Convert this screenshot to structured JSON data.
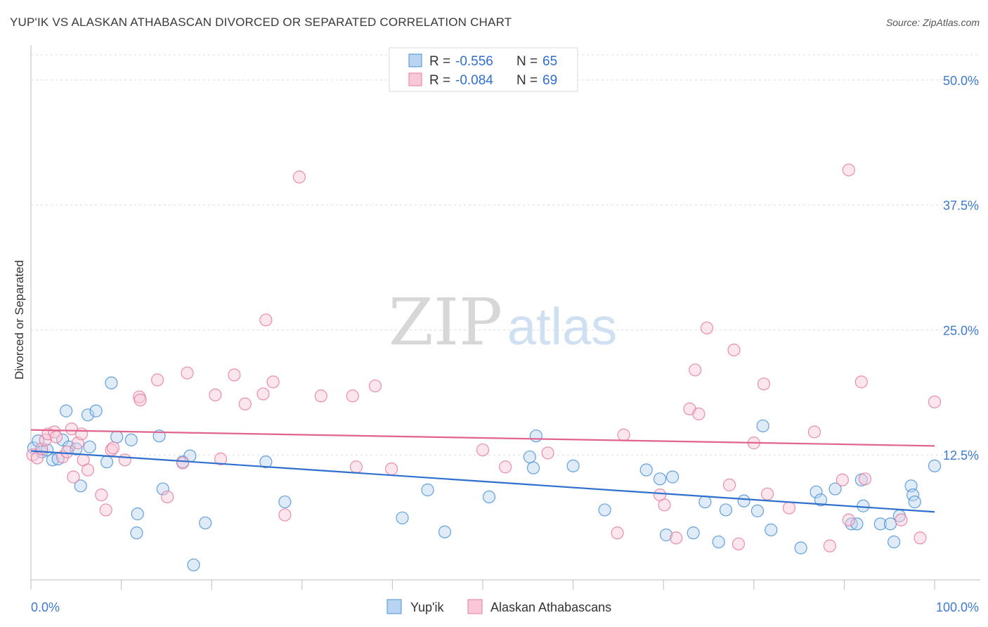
{
  "chart_data": {
    "type": "scatter",
    "title": "YUP'IK VS ALASKAN ATHABASCAN DIVORCED OR SEPARATED CORRELATION CHART",
    "source": "Source: ZipAtlas.com",
    "ylabel": "Divorced or Separated",
    "xlabel": "",
    "xlim": [
      0,
      100
    ],
    "ylim": [
      0,
      53.5
    ],
    "x_tick_labels": [
      "0.0%",
      "100.0%"
    ],
    "y_ticks": [
      12.5,
      25.0,
      37.5,
      50.0
    ],
    "y_tick_labels": [
      "12.5%",
      "25.0%",
      "37.5%",
      "50.0%"
    ],
    "grid": true,
    "watermark": {
      "zip": "ZIP",
      "atlas": "atlas"
    },
    "legend_stats": [
      {
        "r_label": "R =",
        "r_value": "-0.556",
        "n_label": "N =",
        "n_value": "65"
      },
      {
        "r_label": "R =",
        "r_value": "-0.084",
        "n_label": "N =",
        "n_value": "69"
      }
    ],
    "series": [
      {
        "name": "Yup'ik",
        "color": "#4a90d9",
        "fill": "#b8d4f0",
        "trend": {
          "x": [
            0,
            100
          ],
          "y": [
            12.9,
            6.8
          ]
        },
        "points": [
          [
            0.3,
            13.2
          ],
          [
            0.8,
            13.9
          ],
          [
            1.2,
            12.8
          ],
          [
            1.8,
            13.0
          ],
          [
            2.4,
            12.0
          ],
          [
            3.0,
            12.1
          ],
          [
            3.5,
            14.0
          ],
          [
            3.9,
            16.9
          ],
          [
            4.2,
            13.3
          ],
          [
            5.0,
            13.1
          ],
          [
            5.5,
            9.4
          ],
          [
            6.3,
            16.5
          ],
          [
            6.5,
            13.3
          ],
          [
            7.2,
            16.9
          ],
          [
            8.4,
            11.8
          ],
          [
            8.9,
            19.7
          ],
          [
            9.5,
            14.3
          ],
          [
            11.1,
            14.0
          ],
          [
            11.7,
            4.7
          ],
          [
            11.8,
            6.6
          ],
          [
            14.2,
            14.4
          ],
          [
            14.6,
            9.1
          ],
          [
            16.8,
            11.8
          ],
          [
            17.6,
            12.4
          ],
          [
            18.0,
            1.5
          ],
          [
            19.3,
            5.7
          ],
          [
            26.0,
            11.8
          ],
          [
            28.1,
            7.8
          ],
          [
            41.1,
            6.2
          ],
          [
            43.9,
            9.0
          ],
          [
            45.8,
            4.8
          ],
          [
            50.7,
            8.3
          ],
          [
            55.2,
            12.3
          ],
          [
            55.6,
            11.2
          ],
          [
            55.9,
            14.4
          ],
          [
            60.0,
            11.4
          ],
          [
            63.5,
            7.0
          ],
          [
            68.1,
            11.0
          ],
          [
            69.6,
            10.1
          ],
          [
            70.3,
            4.5
          ],
          [
            71.0,
            10.3
          ],
          [
            73.3,
            4.7
          ],
          [
            74.6,
            7.8
          ],
          [
            76.1,
            3.8
          ],
          [
            76.9,
            7.0
          ],
          [
            78.9,
            7.9
          ],
          [
            80.4,
            6.9
          ],
          [
            81.0,
            15.4
          ],
          [
            81.9,
            5.0
          ],
          [
            85.2,
            3.2
          ],
          [
            86.9,
            8.8
          ],
          [
            87.4,
            8.0
          ],
          [
            89.0,
            9.1
          ],
          [
            90.8,
            5.6
          ],
          [
            91.4,
            5.6
          ],
          [
            91.9,
            10.0
          ],
          [
            92.1,
            7.4
          ],
          [
            94.0,
            5.6
          ],
          [
            95.1,
            5.6
          ],
          [
            95.5,
            3.8
          ],
          [
            96.1,
            6.4
          ],
          [
            97.4,
            9.4
          ],
          [
            97.6,
            8.5
          ],
          [
            97.8,
            7.8
          ],
          [
            100.0,
            11.4
          ]
        ]
      },
      {
        "name": "Alaskan Athabascans",
        "color": "#e87aa0",
        "fill": "#f8c8d8",
        "trend": {
          "x": [
            0,
            100
          ],
          "y": [
            15.0,
            13.4
          ]
        },
        "points": [
          [
            0.2,
            12.5
          ],
          [
            0.7,
            12.2
          ],
          [
            1.2,
            13.1
          ],
          [
            1.6,
            14.0
          ],
          [
            1.9,
            14.6
          ],
          [
            2.6,
            14.8
          ],
          [
            2.8,
            14.3
          ],
          [
            3.5,
            12.3
          ],
          [
            4.0,
            12.8
          ],
          [
            4.5,
            15.1
          ],
          [
            4.7,
            10.3
          ],
          [
            5.2,
            13.7
          ],
          [
            5.6,
            14.6
          ],
          [
            5.8,
            12.0
          ],
          [
            6.3,
            11.0
          ],
          [
            7.8,
            8.5
          ],
          [
            8.3,
            7.0
          ],
          [
            8.9,
            13.0
          ],
          [
            9.1,
            13.2
          ],
          [
            10.4,
            12.0
          ],
          [
            12.0,
            18.3
          ],
          [
            12.1,
            18.0
          ],
          [
            14.0,
            20.0
          ],
          [
            15.1,
            8.3
          ],
          [
            16.8,
            11.7
          ],
          [
            17.3,
            20.7
          ],
          [
            20.4,
            18.5
          ],
          [
            21.0,
            12.1
          ],
          [
            22.5,
            20.5
          ],
          [
            23.7,
            17.6
          ],
          [
            25.7,
            18.6
          ],
          [
            26.0,
            26.0
          ],
          [
            26.8,
            19.8
          ],
          [
            28.1,
            6.5
          ],
          [
            29.7,
            40.3
          ],
          [
            32.1,
            18.4
          ],
          [
            35.6,
            18.4
          ],
          [
            36.0,
            11.3
          ],
          [
            38.1,
            19.4
          ],
          [
            39.9,
            11.1
          ],
          [
            50.0,
            13.0
          ],
          [
            52.5,
            11.3
          ],
          [
            57.2,
            12.7
          ],
          [
            64.9,
            4.7
          ],
          [
            65.6,
            14.5
          ],
          [
            69.6,
            8.5
          ],
          [
            70.1,
            7.5
          ],
          [
            71.4,
            4.2
          ],
          [
            72.9,
            17.1
          ],
          [
            73.5,
            21.0
          ],
          [
            73.9,
            16.6
          ],
          [
            74.8,
            25.2
          ],
          [
            77.3,
            9.5
          ],
          [
            77.8,
            23.0
          ],
          [
            78.3,
            3.6
          ],
          [
            80.0,
            13.7
          ],
          [
            81.1,
            19.6
          ],
          [
            81.5,
            8.6
          ],
          [
            83.9,
            7.2
          ],
          [
            86.7,
            14.8
          ],
          [
            88.4,
            3.4
          ],
          [
            89.8,
            10.0
          ],
          [
            90.5,
            6.0
          ],
          [
            90.5,
            41.0
          ],
          [
            91.9,
            19.8
          ],
          [
            92.3,
            10.1
          ],
          [
            96.3,
            6.0
          ],
          [
            98.4,
            4.2
          ],
          [
            100.0,
            17.8
          ]
        ]
      }
    ]
  }
}
